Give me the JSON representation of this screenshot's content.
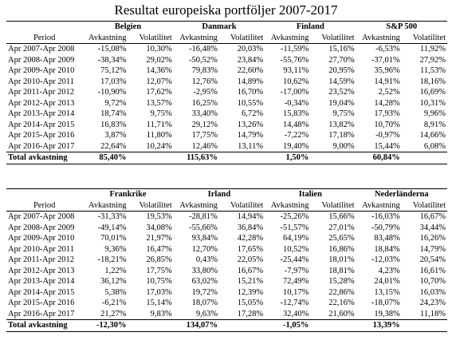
{
  "title": "Resultat europeiska portföljer 2007-2017",
  "labels": {
    "period": "Period",
    "return": "Avkastning",
    "volatility": "Volatilitet",
    "total": "Total avkastning"
  },
  "periods": [
    "Apr 2007-Apr 2008",
    "Apr 2008-Apr 2009",
    "Apr 2009-Apr 2010",
    "Apr 2010-Apr 2011",
    "Apr 2011-Apr 2012",
    "Apr 2012-Apr 2013",
    "Apr 2013-Apr 2014",
    "Apr 2014-Apr 2015",
    "Apr 2015-Apr 2016",
    "Apr 2016-Apr 2017"
  ],
  "panels": [
    {
      "countries": [
        {
          "name": "Belgien",
          "rows": [
            [
              "-15,08%",
              "10,30%"
            ],
            [
              "-38,34%",
              "29,02%"
            ],
            [
              "75,12%",
              "14,36%"
            ],
            [
              "17,03%",
              "12,07%"
            ],
            [
              "-10,90%",
              "17,62%"
            ],
            [
              "9,72%",
              "13,57%"
            ],
            [
              "18,74%",
              "9,75%"
            ],
            [
              "16,83%",
              "11,71%"
            ],
            [
              "3,87%",
              "11,80%"
            ],
            [
              "22,64%",
              "10,24%"
            ]
          ],
          "total": "85,40%"
        },
        {
          "name": "Danmark",
          "rows": [
            [
              "-16,48%",
              "20,03%"
            ],
            [
              "-50,52%",
              "23,84%"
            ],
            [
              "79,83%",
              "22,60%"
            ],
            [
              "12,76%",
              "14,89%"
            ],
            [
              "-2,95%",
              "16,70%"
            ],
            [
              "16,25%",
              "10,55%"
            ],
            [
              "33,40%",
              "6,72%"
            ],
            [
              "29,12%",
              "13,26%"
            ],
            [
              "17,75%",
              "14,79%"
            ],
            [
              "12,46%",
              "13,11%"
            ]
          ],
          "total": "115,63%"
        },
        {
          "name": "Finland",
          "rows": [
            [
              "-11,59%",
              "15,16%"
            ],
            [
              "-55,76%",
              "27,70%"
            ],
            [
              "93,11%",
              "20,95%"
            ],
            [
              "10,62%",
              "14,59%"
            ],
            [
              "-17,00%",
              "23,52%"
            ],
            [
              "-0,34%",
              "19,04%"
            ],
            [
              "15,83%",
              "9,75%"
            ],
            [
              "14,48%",
              "13,82%"
            ],
            [
              "-7,22%",
              "17,18%"
            ],
            [
              "19,40%",
              "9,00%"
            ]
          ],
          "total": "1,50%"
        },
        {
          "name": "S&P 500",
          "rows": [
            [
              "-6,53%",
              "11,92%"
            ],
            [
              "-37,01%",
              "27,92%"
            ],
            [
              "35,96%",
              "11,53%"
            ],
            [
              "14,91%",
              "18,16%"
            ],
            [
              "2,52%",
              "16,69%"
            ],
            [
              "14,28%",
              "10,31%"
            ],
            [
              "17,93%",
              "9,96%"
            ],
            [
              "10,70%",
              "8,91%"
            ],
            [
              "-0,97%",
              "14,66%"
            ],
            [
              "15,44%",
              "6,08%"
            ]
          ],
          "total": "60,84%"
        }
      ]
    },
    {
      "countries": [
        {
          "name": "Frankrike",
          "rows": [
            [
              "-31,33%",
              "19,53%"
            ],
            [
              "-49,14%",
              "34,08%"
            ],
            [
              "70,01%",
              "21,97%"
            ],
            [
              "9,36%",
              "16,47%"
            ],
            [
              "-18,21%",
              "26,85%"
            ],
            [
              "1,22%",
              "17,75%"
            ],
            [
              "36,12%",
              "10,75%"
            ],
            [
              "5,38%",
              "17,03%"
            ],
            [
              "-6,21%",
              "15,14%"
            ],
            [
              "21,27%",
              "9,83%"
            ]
          ],
          "total": "-12,30%"
        },
        {
          "name": "Irland",
          "rows": [
            [
              "-28,81%",
              "14,94%"
            ],
            [
              "-55,66%",
              "36,84%"
            ],
            [
              "93,84%",
              "42,28%"
            ],
            [
              "12,70%",
              "17,65%"
            ],
            [
              "0,43%",
              "22,05%"
            ],
            [
              "33,80%",
              "16,67%"
            ],
            [
              "63,02%",
              "15,21%"
            ],
            [
              "19,72%",
              "12,39%"
            ],
            [
              "18,07%",
              "15,05%"
            ],
            [
              "9,63%",
              "17,28%"
            ]
          ],
          "total": "134,07%"
        },
        {
          "name": "Italien",
          "rows": [
            [
              "-25,26%",
              "15,66%"
            ],
            [
              "-51,57%",
              "27,01%"
            ],
            [
              "64,19%",
              "25,65%"
            ],
            [
              "10,52%",
              "16,86%"
            ],
            [
              "-25,44%",
              "18,01%"
            ],
            [
              "-7,97%",
              "18,81%"
            ],
            [
              "72,49%",
              "15,28%"
            ],
            [
              "10,17%",
              "22,86%"
            ],
            [
              "-12,74%",
              "22,16%"
            ],
            [
              "32,40%",
              "21,60%"
            ]
          ],
          "total": "-1,05%"
        },
        {
          "name": "Nederländerna",
          "rows": [
            [
              "-16,03%",
              "16,67%"
            ],
            [
              "-50,79%",
              "34,44%"
            ],
            [
              "83,48%",
              "16,26%"
            ],
            [
              "18,84%",
              "14,79%"
            ],
            [
              "-12,03%",
              "20,54%"
            ],
            [
              "4,23%",
              "16,61%"
            ],
            [
              "24,01%",
              "10,70%"
            ],
            [
              "13,15%",
              "16,03%"
            ],
            [
              "-18,07%",
              "24,23%"
            ],
            [
              "19,38%",
              "11,18%"
            ]
          ],
          "total": "13,39%"
        }
      ]
    }
  ]
}
